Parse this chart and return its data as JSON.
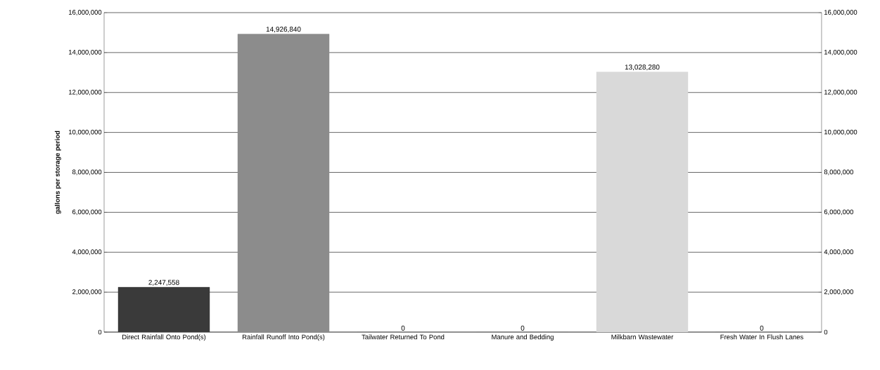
{
  "chart_data": {
    "type": "bar",
    "ylabel": "gallons per storage period",
    "categories": [
      "Direct Rainfall Onto Pond(s)",
      "Rainfall Runoff Into Pond(s)",
      "Tailwater Returned To Pond",
      "Manure and Bedding",
      "Milkbarn Wastewater",
      "Fresh Water In Flush Lanes"
    ],
    "values": [
      2247558,
      14926840,
      0,
      0,
      13028280,
      0
    ],
    "value_labels": [
      "2,247,558",
      "14,926,840",
      "0",
      "0",
      "13,028,280",
      "0"
    ],
    "colors": [
      "#3a3a3a",
      "#8c8c8c",
      "#8c8c8c",
      "#8c8c8c",
      "#d9d9d9",
      "#8c8c8c"
    ],
    "ylim": [
      0,
      16000000
    ],
    "yticks": [
      {
        "value": 0,
        "label": "0"
      },
      {
        "value": 2000000,
        "label": "2,000,000"
      },
      {
        "value": 4000000,
        "label": "4,000,000"
      },
      {
        "value": 6000000,
        "label": "6,000,000"
      },
      {
        "value": 8000000,
        "label": "8,000,000"
      },
      {
        "value": 10000000,
        "label": "10,000,000"
      },
      {
        "value": 12000000,
        "label": "12,000,000"
      },
      {
        "value": 14000000,
        "label": "14,000,000"
      },
      {
        "value": 16000000,
        "label": "16,000,000"
      }
    ],
    "y2lim": [
      0,
      16000000
    ],
    "y2ticks": [
      {
        "value": 0,
        "label": "0"
      },
      {
        "value": 2000000,
        "label": "2,000,000"
      },
      {
        "value": 4000000,
        "label": "4,000,000"
      },
      {
        "value": 6000000,
        "label": "6,000,000"
      },
      {
        "value": 8000000,
        "label": "8,000,000"
      },
      {
        "value": 10000000,
        "label": "10,000,000"
      },
      {
        "value": 12000000,
        "label": "12,000,000"
      },
      {
        "value": 14000000,
        "label": "14,000,000"
      },
      {
        "value": 16000000,
        "label": "16,000,000"
      }
    ],
    "grid": "y"
  }
}
